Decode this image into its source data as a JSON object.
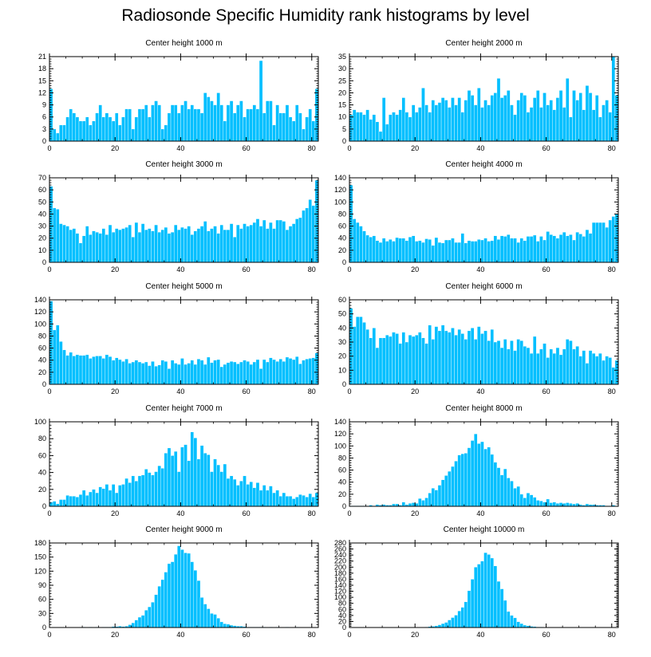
{
  "title": "Radiosonde Specific Humidity rank histograms by level",
  "colors": {
    "bar": "#00BFFF",
    "bar_edge": "#ffffff",
    "axis": "#000000"
  },
  "chart_data": [
    {
      "type": "bar",
      "title": "Center height 1000 m",
      "xlabel": "",
      "ylabel": "",
      "xlim": [
        0,
        82
      ],
      "xticks": [
        0,
        20,
        40,
        60,
        80
      ],
      "ylim": [
        0,
        21
      ],
      "yticks": [
        0,
        3,
        6,
        9,
        12,
        15,
        18,
        21
      ],
      "values": [
        13,
        3,
        2,
        4,
        4,
        6,
        8,
        7,
        6,
        5,
        5,
        6,
        4,
        5,
        7,
        9,
        6,
        7,
        6,
        5,
        7,
        4,
        6,
        8,
        8,
        3,
        6,
        8,
        8,
        9,
        6,
        9,
        10,
        9,
        3,
        4,
        7,
        9,
        9,
        7,
        9,
        10,
        8,
        9,
        8,
        8,
        7,
        12,
        11,
        10,
        9,
        12,
        9,
        5,
        9,
        10,
        7,
        9,
        10,
        6,
        8,
        8,
        9,
        8,
        20,
        7,
        10,
        10,
        4,
        9,
        7,
        7,
        9,
        6,
        5,
        9,
        7,
        3,
        6,
        8,
        5,
        13
      ]
    },
    {
      "type": "bar",
      "title": "Center height 2000 m",
      "xlabel": "",
      "ylabel": "",
      "xlim": [
        0,
        82
      ],
      "xticks": [
        0,
        20,
        40,
        60,
        80
      ],
      "ylim": [
        0,
        35
      ],
      "yticks": [
        0,
        5,
        10,
        15,
        20,
        25,
        30,
        35
      ],
      "values": [
        11,
        13,
        12,
        12,
        11,
        13,
        9,
        11,
        8,
        4,
        18,
        7,
        11,
        12,
        11,
        13,
        18,
        12,
        10,
        15,
        12,
        14,
        22,
        15,
        12,
        17,
        15,
        16,
        18,
        17,
        14,
        18,
        15,
        18,
        12,
        17,
        21,
        19,
        15,
        22,
        14,
        17,
        15,
        19,
        20,
        26,
        18,
        19,
        21,
        15,
        11,
        17,
        20,
        19,
        12,
        14,
        18,
        21,
        14,
        20,
        15,
        17,
        13,
        18,
        21,
        14,
        26,
        10,
        21,
        17,
        20,
        13,
        23,
        20,
        13,
        19,
        10,
        15,
        17,
        12,
        35,
        19
      ]
    },
    {
      "type": "bar",
      "title": "Center height 3000 m",
      "xlabel": "",
      "ylabel": "",
      "xlim": [
        0,
        82
      ],
      "xticks": [
        0,
        20,
        40,
        60,
        80
      ],
      "ylim": [
        0,
        70
      ],
      "yticks": [
        0,
        10,
        20,
        30,
        40,
        50,
        60,
        70
      ],
      "values": [
        63,
        45,
        44,
        32,
        31,
        30,
        27,
        28,
        24,
        16,
        22,
        30,
        23,
        26,
        25,
        24,
        28,
        23,
        31,
        25,
        28,
        27,
        28,
        29,
        31,
        21,
        33,
        25,
        32,
        27,
        28,
        26,
        31,
        25,
        27,
        29,
        24,
        25,
        31,
        27,
        29,
        28,
        30,
        23,
        26,
        28,
        30,
        34,
        26,
        28,
        30,
        24,
        31,
        27,
        27,
        32,
        21,
        31,
        28,
        32,
        30,
        31,
        33,
        36,
        30,
        35,
        28,
        33,
        28,
        35,
        35,
        34,
        27,
        30,
        32,
        36,
        37,
        43,
        45,
        52,
        47,
        68
      ]
    },
    {
      "type": "bar",
      "title": "Center height 4000 m",
      "xlabel": "",
      "ylabel": "",
      "xlim": [
        0,
        82
      ],
      "xticks": [
        0,
        20,
        40,
        60,
        80
      ],
      "ylim": [
        0,
        140
      ],
      "yticks": [
        0,
        20,
        40,
        60,
        80,
        100,
        120,
        140
      ],
      "values": [
        128,
        72,
        66,
        60,
        52,
        45,
        42,
        44,
        36,
        33,
        40,
        35,
        38,
        35,
        41,
        40,
        40,
        36,
        42,
        44,
        35,
        36,
        33,
        39,
        38,
        28,
        41,
        33,
        32,
        37,
        37,
        40,
        33,
        33,
        48,
        32,
        36,
        35,
        35,
        38,
        37,
        40,
        35,
        36,
        44,
        38,
        44,
        43,
        46,
        40,
        40,
        33,
        40,
        36,
        43,
        43,
        45,
        35,
        43,
        37,
        51,
        46,
        44,
        40,
        46,
        50,
        44,
        46,
        37,
        50,
        47,
        43,
        54,
        48,
        66,
        66,
        66,
        66,
        58,
        70,
        76,
        80
      ]
    },
    {
      "type": "bar",
      "title": "Center height 5000 m",
      "xlabel": "",
      "ylabel": "",
      "xlim": [
        0,
        82
      ],
      "xticks": [
        0,
        20,
        40,
        60,
        80
      ],
      "ylim": [
        0,
        140
      ],
      "yticks": [
        0,
        20,
        40,
        60,
        80,
        100,
        120,
        140
      ],
      "values": [
        138,
        90,
        98,
        71,
        57,
        48,
        53,
        47,
        49,
        48,
        48,
        49,
        43,
        46,
        47,
        47,
        43,
        49,
        46,
        40,
        44,
        41,
        38,
        42,
        35,
        37,
        40,
        37,
        35,
        37,
        31,
        38,
        30,
        32,
        40,
        38,
        26,
        40,
        35,
        33,
        43,
        33,
        35,
        40,
        33,
        42,
        40,
        33,
        45,
        36,
        40,
        41,
        29,
        33,
        36,
        38,
        37,
        34,
        37,
        40,
        38,
        33,
        37,
        41,
        26,
        41,
        37,
        44,
        41,
        38,
        42,
        38,
        45,
        43,
        41,
        46,
        34,
        40,
        42,
        43,
        44,
        52
      ]
    },
    {
      "type": "bar",
      "title": "Center height 6000 m",
      "xlabel": "",
      "ylabel": "",
      "xlim": [
        0,
        82
      ],
      "xticks": [
        0,
        20,
        40,
        60,
        80
      ],
      "ylim": [
        0,
        60
      ],
      "yticks": [
        0,
        10,
        20,
        30,
        40,
        50,
        60
      ],
      "values": [
        54,
        41,
        48,
        48,
        44,
        39,
        33,
        40,
        26,
        33,
        33,
        35,
        34,
        37,
        36,
        29,
        37,
        30,
        35,
        34,
        35,
        37,
        33,
        29,
        42,
        32,
        41,
        38,
        42,
        38,
        37,
        40,
        35,
        39,
        36,
        32,
        38,
        40,
        32,
        41,
        36,
        38,
        31,
        39,
        30,
        31,
        26,
        32,
        25,
        31,
        24,
        32,
        31,
        27,
        26,
        22,
        34,
        22,
        25,
        29,
        19,
        25,
        22,
        26,
        21,
        25,
        32,
        31,
        25,
        27,
        20,
        24,
        15,
        24,
        22,
        20,
        22,
        17,
        20,
        19,
        12,
        17
      ]
    },
    {
      "type": "bar",
      "title": "Center height 7000 m",
      "xlabel": "",
      "ylabel": "",
      "xlim": [
        0,
        82
      ],
      "xticks": [
        0,
        20,
        40,
        60,
        80
      ],
      "ylim": [
        0,
        100
      ],
      "yticks": [
        0,
        20,
        40,
        60,
        80,
        100
      ],
      "values": [
        5,
        6,
        3,
        8,
        8,
        13,
        12,
        12,
        11,
        14,
        19,
        13,
        17,
        20,
        16,
        23,
        21,
        26,
        19,
        26,
        16,
        25,
        26,
        33,
        28,
        36,
        30,
        36,
        37,
        44,
        40,
        37,
        41,
        48,
        45,
        63,
        69,
        60,
        65,
        41,
        70,
        73,
        54,
        88,
        81,
        56,
        72,
        63,
        61,
        41,
        56,
        49,
        41,
        50,
        33,
        36,
        32,
        25,
        30,
        36,
        26,
        29,
        22,
        28,
        19,
        25,
        19,
        24,
        16,
        19,
        12,
        16,
        12,
        12,
        9,
        11,
        14,
        13,
        11,
        15,
        11,
        16
      ]
    },
    {
      "type": "bar",
      "title": "Center height 8000 m",
      "xlabel": "",
      "ylabel": "",
      "xlim": [
        0,
        82
      ],
      "xticks": [
        0,
        20,
        40,
        60,
        80
      ],
      "ylim": [
        0,
        140
      ],
      "yticks": [
        0,
        20,
        40,
        60,
        80,
        100,
        120,
        140
      ],
      "values": [
        1,
        1,
        1,
        1,
        1,
        1,
        2,
        1,
        3,
        2,
        3,
        2,
        2,
        4,
        4,
        2,
        7,
        3,
        5,
        6,
        5,
        13,
        10,
        14,
        22,
        30,
        27,
        35,
        44,
        51,
        58,
        66,
        75,
        85,
        87,
        88,
        97,
        109,
        120,
        104,
        107,
        95,
        98,
        86,
        73,
        64,
        52,
        62,
        47,
        42,
        30,
        33,
        20,
        14,
        22,
        19,
        15,
        10,
        9,
        7,
        12,
        6,
        7,
        5,
        6,
        5,
        6,
        5,
        4,
        5,
        3,
        2,
        4,
        3,
        3,
        2,
        2,
        2,
        1,
        1,
        2,
        1
      ]
    },
    {
      "type": "bar",
      "title": "Center height 9000 m",
      "xlabel": "",
      "ylabel": "",
      "xlim": [
        0,
        82
      ],
      "xticks": [
        0,
        20,
        40,
        60,
        80
      ],
      "ylim": [
        0,
        180
      ],
      "yticks": [
        0,
        30,
        60,
        90,
        120,
        150,
        180
      ],
      "values": [
        0,
        0,
        0,
        0,
        0,
        0,
        0,
        0,
        0,
        0,
        1,
        0,
        1,
        0,
        1,
        0,
        1,
        1,
        1,
        2,
        2,
        3,
        2,
        3,
        6,
        10,
        16,
        22,
        26,
        37,
        44,
        54,
        70,
        88,
        102,
        118,
        136,
        140,
        156,
        174,
        166,
        159,
        158,
        140,
        122,
        100,
        64,
        50,
        40,
        30,
        28,
        20,
        12,
        8,
        7,
        5,
        4,
        3,
        3,
        2,
        1,
        1,
        1,
        1,
        1,
        1,
        0,
        1,
        0,
        1,
        0,
        0,
        1,
        0,
        0,
        1,
        0,
        0,
        0,
        0,
        0,
        0
      ]
    },
    {
      "type": "bar",
      "title": "Center height 10000 m",
      "xlabel": "",
      "ylabel": "",
      "xlim": [
        0,
        82
      ],
      "xticks": [
        0,
        20,
        40,
        60,
        80
      ],
      "ylim": [
        0,
        280
      ],
      "yticks": [
        0,
        20,
        40,
        60,
        80,
        100,
        120,
        140,
        160,
        180,
        200,
        220,
        240,
        260,
        280
      ],
      "values": [
        0,
        0,
        0,
        0,
        0,
        0,
        0,
        0,
        0,
        0,
        0,
        0,
        0,
        0,
        0,
        0,
        0,
        0,
        0,
        0,
        1,
        1,
        1,
        2,
        3,
        4,
        6,
        9,
        13,
        17,
        25,
        33,
        41,
        55,
        67,
        85,
        122,
        160,
        200,
        210,
        220,
        248,
        242,
        230,
        204,
        153,
        128,
        90,
        53,
        40,
        32,
        19,
        13,
        8,
        6,
        4,
        3,
        2,
        2,
        1,
        1,
        1,
        1,
        1,
        1,
        1,
        0,
        0,
        0,
        0,
        0,
        0,
        0,
        0,
        0,
        0,
        0,
        0,
        0,
        0,
        0,
        0
      ]
    }
  ]
}
